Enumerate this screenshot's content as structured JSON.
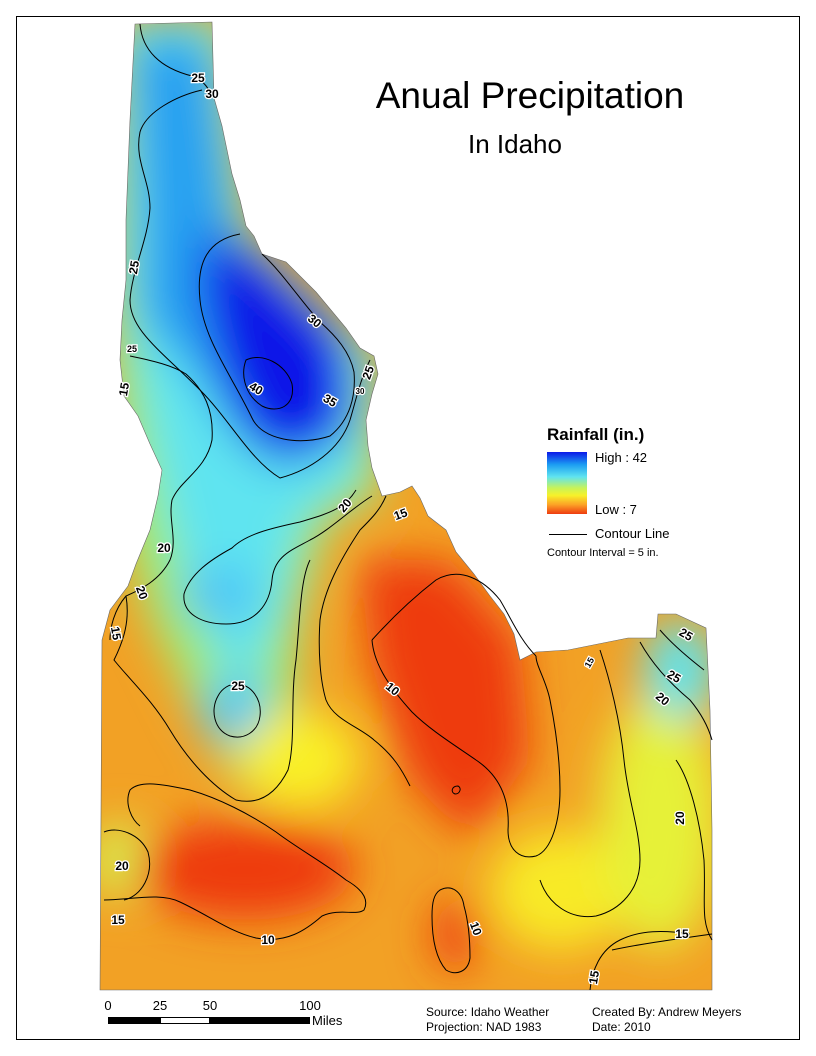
{
  "map": {
    "title": "Anual Precipitation",
    "subtitle": "In Idaho",
    "contour_labels": [
      "25",
      "30",
      "25",
      "30",
      "25",
      "15",
      "40",
      "35",
      "30",
      "25",
      "20",
      "15",
      "20",
      "20",
      "15",
      "25",
      "10",
      "15",
      "25",
      "25",
      "20",
      "20",
      "20",
      "15",
      "10",
      "10",
      "15",
      "15"
    ]
  },
  "legend": {
    "title": "Rainfall (in.)",
    "high_label": "High : 42",
    "low_label": "Low : 7",
    "contour_label": "Contour Line",
    "interval": "Contour Interval = 5 in.",
    "colors": [
      "#0b19e8",
      "#1b9cf2",
      "#5fe4f0",
      "#c7f35a",
      "#f7f12a",
      "#fca226",
      "#ee3b10"
    ]
  },
  "scale_bar": {
    "ticks": [
      "0",
      "25",
      "50",
      "100"
    ],
    "unit": "Miles"
  },
  "credits": {
    "source": "Source: Idaho Weather",
    "projection": "Projection: NAD 1983",
    "author": "Created By: Andrew Meyers",
    "date": "Date: 2010"
  }
}
